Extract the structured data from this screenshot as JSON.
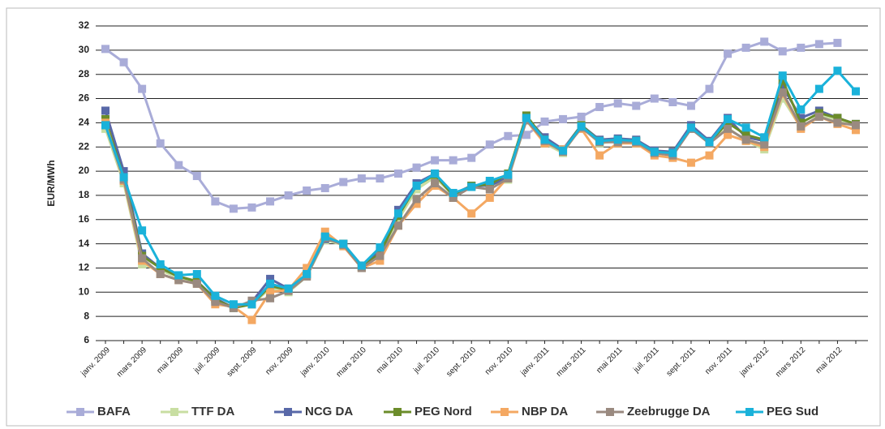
{
  "chart_data": {
    "type": "line",
    "y_label": "EUR/MWh",
    "categories": [
      "janv. 2009",
      null,
      "mars 2009",
      null,
      "mai 2009",
      null,
      "juil. 2009",
      null,
      "sept. 2009",
      null,
      "nov. 2009",
      null,
      "janv. 2010",
      null,
      "mars 2010",
      null,
      "mai 2010",
      null,
      "juil. 2010",
      null,
      "sept. 2010",
      null,
      "nov. 2010",
      null,
      "janv. 2011",
      null,
      "mars 2011",
      null,
      "mai 2011",
      null,
      "juil. 2011",
      null,
      "sept. 2011",
      null,
      "nov. 2011",
      null,
      "janv. 2012",
      null,
      "mars 2012",
      null,
      "mai 2012",
      null
    ],
    "ylim": [
      6,
      32
    ],
    "yticks": [
      6,
      8,
      10,
      12,
      14,
      16,
      18,
      20,
      22,
      24,
      26,
      28,
      30,
      32
    ],
    "grid": true,
    "legend": "bottom",
    "series": [
      {
        "name": "BAFA",
        "color": "#a9acd8",
        "values": [
          30.1,
          29,
          26.8,
          22.3,
          20.5,
          19.6,
          17.5,
          16.9,
          17,
          17.5,
          18,
          18.4,
          18.6,
          19.1,
          19.4,
          19.4,
          19.8,
          20.3,
          20.9,
          20.9,
          21.1,
          22.2,
          22.9,
          23,
          24.1,
          24.3,
          24.5,
          25.3,
          25.6,
          25.4,
          26,
          25.7,
          25.4,
          26.8,
          29.7,
          30.2,
          30.7,
          29.9,
          30.2,
          30.5,
          30.6,
          null
        ]
      },
      {
        "name": "TTF DA",
        "color": "#c8dea2",
        "values": [
          23.5,
          19,
          12.3,
          11.8,
          11.2,
          10.8,
          9.3,
          8.8,
          9,
          10.3,
          10,
          11.3,
          14.3,
          13.9,
          12,
          13,
          16,
          18.5,
          19.5,
          18,
          18.7,
          19,
          19.3,
          24.2,
          22.3,
          21.5,
          23.7,
          22.3,
          22.5,
          22.3,
          21.5,
          21.4,
          23.5,
          22.3,
          23.6,
          22.5,
          21.8,
          26,
          23.6,
          24.6,
          24.2,
          23.7
        ]
      },
      {
        "name": "NCG DA",
        "color": "#5868a8",
        "values": [
          25,
          20,
          13.2,
          12,
          11.3,
          10.9,
          9.5,
          8.7,
          9.2,
          11.1,
          10.3,
          11.4,
          14.4,
          14,
          12.2,
          13.4,
          16.8,
          19,
          19.8,
          18.1,
          18.8,
          18.8,
          19.5,
          24.4,
          22.8,
          21.8,
          23.8,
          22.6,
          22.7,
          22.6,
          21.7,
          21.6,
          23.8,
          22.5,
          24.4,
          22.8,
          22.5,
          27,
          24.4,
          25,
          24.4,
          23.9
        ]
      },
      {
        "name": "PEG Nord",
        "color": "#6b8c2a",
        "values": [
          24.3,
          19.5,
          13,
          12,
          11.3,
          10.9,
          9.4,
          8.7,
          9,
          10.5,
          10.2,
          11.5,
          14.5,
          14,
          12.1,
          13.2,
          16.3,
          18.8,
          19.7,
          18,
          18.8,
          18.9,
          19.8,
          24.6,
          22.6,
          21.7,
          23.8,
          22.5,
          22.6,
          22.5,
          21.6,
          21.5,
          23.6,
          22.4,
          24,
          23,
          22.6,
          27.5,
          24,
          24.8,
          24.4,
          23.9
        ]
      },
      {
        "name": "NBP DA",
        "color": "#f4a862",
        "values": [
          24,
          19.2,
          12.6,
          11.5,
          11,
          10.7,
          9,
          8.8,
          7.7,
          10,
          10.2,
          12,
          15,
          13.8,
          12,
          12.6,
          15.5,
          17.3,
          18.8,
          17.8,
          16.5,
          17.8,
          19.5,
          24.2,
          22.3,
          21.8,
          23.5,
          21.3,
          22.3,
          22.3,
          21.3,
          21.1,
          20.7,
          21.3,
          23,
          22.5,
          22,
          26.4,
          23.5,
          24.5,
          23.9,
          23.4
        ]
      },
      {
        "name": "Zeebrugge DA",
        "color": "#9a8a80",
        "values": [
          23.8,
          19.3,
          12.8,
          11.5,
          11,
          10.7,
          9.2,
          8.7,
          9.3,
          9.5,
          10.1,
          11.3,
          14.5,
          13.9,
          12,
          13,
          15.5,
          17.7,
          19,
          17.8,
          18.7,
          18.5,
          19.4,
          24.2,
          22.5,
          21.6,
          23.6,
          22.4,
          22.4,
          22.4,
          21.5,
          21.3,
          23.5,
          22.3,
          23.5,
          22.6,
          22.2,
          26.5,
          23.7,
          24.5,
          24,
          23.8
        ]
      },
      {
        "name": "PEG Sud",
        "color": "#1ab2da",
        "values": [
          23.8,
          19.5,
          15.1,
          12.3,
          11.4,
          11.5,
          9.7,
          9,
          9,
          10.7,
          10.3,
          11.5,
          14.6,
          14,
          12.2,
          13.7,
          16.5,
          18.8,
          19.8,
          18.2,
          18.7,
          19.2,
          19.7,
          24.4,
          22.6,
          21.7,
          23.7,
          22.5,
          22.6,
          22.5,
          21.6,
          21.5,
          23.6,
          22.4,
          24.3,
          23.6,
          22.8,
          27.9,
          25.1,
          26.8,
          28.3,
          26.6
        ]
      }
    ]
  }
}
